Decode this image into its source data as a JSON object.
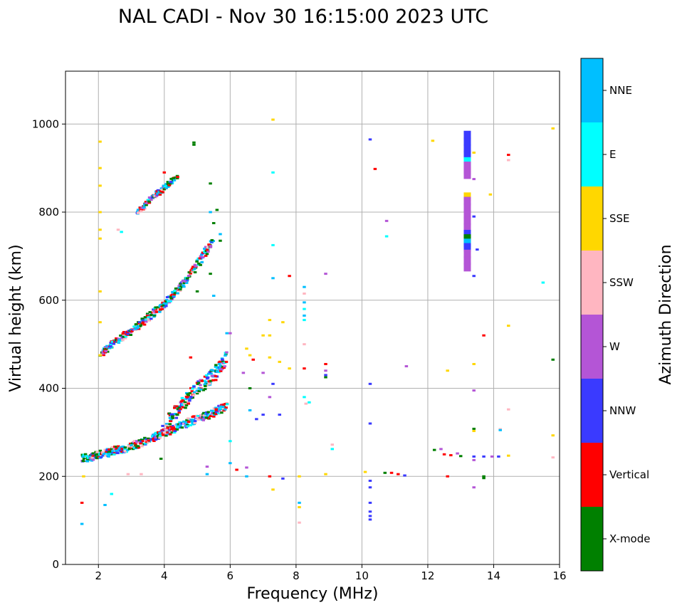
{
  "chart_data": {
    "type": "scatter",
    "title": "NAL CADI - Nov 30 16:15:00 2023 UTC",
    "xlabel": "Frequency (MHz)",
    "ylabel": "Virtual height (km)",
    "xlim": [
      1,
      16
    ],
    "ylim": [
      0,
      1120
    ],
    "xticks": [
      2,
      4,
      6,
      8,
      10,
      12,
      14,
      16
    ],
    "yticks": [
      0,
      200,
      400,
      600,
      800,
      1000
    ],
    "grid": true,
    "colorbar": {
      "label": "Azimuth Direction",
      "categories": [
        {
          "name": "X-mode",
          "color": "#008000"
        },
        {
          "name": "Vertical",
          "color": "#ff0000"
        },
        {
          "name": "NNW",
          "color": "#3a3aff"
        },
        {
          "name": "W",
          "color": "#b455d6"
        },
        {
          "name": "SSW",
          "color": "#ffb6c1"
        },
        {
          "name": "SSE",
          "color": "#ffd700"
        },
        {
          "name": "E",
          "color": "#00ffff"
        },
        {
          "name": "NNE",
          "color": "#00bfff"
        }
      ]
    },
    "echo_traces": [
      {
        "name": "o-trace-1",
        "x": [
          1.5,
          2,
          2.5,
          3,
          3.5,
          4,
          4.5,
          5,
          5.5,
          5.9
        ],
        "y": [
          240,
          248,
          258,
          268,
          282,
          300,
          315,
          330,
          345,
          360
        ],
        "spread": 18
      },
      {
        "name": "o-trace-2",
        "x": [
          4,
          4.5,
          5,
          5.5,
          5.9
        ],
        "y": [
          310,
          360,
          400,
          430,
          470
        ],
        "spread": 30
      },
      {
        "name": "multi-hop-1",
        "x": [
          2.1,
          2.5,
          3,
          3.5,
          4,
          4.5,
          5,
          5.5
        ],
        "y": [
          480,
          505,
          530,
          560,
          590,
          630,
          680,
          740
        ],
        "spread": 14
      },
      {
        "name": "multi-hop-2",
        "x": [
          3.2,
          3.6,
          4,
          4.4
        ],
        "y": [
          800,
          830,
          855,
          880
        ],
        "spread": 10
      }
    ],
    "echo_points": [
      {
        "f": 2.05,
        "h": 960,
        "a": "SSE"
      },
      {
        "f": 2.05,
        "h": 900,
        "a": "SSE"
      },
      {
        "f": 2.05,
        "h": 860,
        "a": "SSE"
      },
      {
        "f": 2.05,
        "h": 800,
        "a": "SSE"
      },
      {
        "f": 2.05,
        "h": 760,
        "a": "SSE"
      },
      {
        "f": 2.05,
        "h": 740,
        "a": "SSE"
      },
      {
        "f": 2.05,
        "h": 620,
        "a": "SSE"
      },
      {
        "f": 2.05,
        "h": 550,
        "a": "SSE"
      },
      {
        "f": 2.05,
        "h": 475,
        "a": "SSE"
      },
      {
        "f": 1.5,
        "h": 92,
        "a": "NNE"
      },
      {
        "f": 1.5,
        "h": 140,
        "a": "Vertical"
      },
      {
        "f": 1.55,
        "h": 200,
        "a": "SSE"
      },
      {
        "f": 2.2,
        "h": 135,
        "a": "NNE"
      },
      {
        "f": 2.4,
        "h": 160,
        "a": "E"
      },
      {
        "f": 2.9,
        "h": 205,
        "a": "SSW"
      },
      {
        "f": 3.3,
        "h": 205,
        "a": "SSW"
      },
      {
        "f": 3.9,
        "h": 240,
        "a": "X-mode"
      },
      {
        "f": 6.0,
        "h": 280,
        "a": "E"
      },
      {
        "f": 6.0,
        "h": 230,
        "a": "NNE"
      },
      {
        "f": 6.2,
        "h": 215,
        "a": "Vertical"
      },
      {
        "f": 6.5,
        "h": 220,
        "a": "W"
      },
      {
        "f": 6.6,
        "h": 400,
        "a": "X-mode"
      },
      {
        "f": 6.6,
        "h": 350,
        "a": "NNE"
      },
      {
        "f": 6.8,
        "h": 330,
        "a": "NNW"
      },
      {
        "f": 7.0,
        "h": 340,
        "a": "NNW"
      },
      {
        "f": 7.2,
        "h": 380,
        "a": "W"
      },
      {
        "f": 7.3,
        "h": 410,
        "a": "NNW"
      },
      {
        "f": 7.5,
        "h": 340,
        "a": "NNW"
      },
      {
        "f": 7.5,
        "h": 460,
        "a": "SSE"
      },
      {
        "f": 7.6,
        "h": 550,
        "a": "SSE"
      },
      {
        "f": 7.8,
        "h": 445,
        "a": "SSE"
      },
      {
        "f": 7.2,
        "h": 200,
        "a": "Vertical"
      },
      {
        "f": 7.3,
        "h": 170,
        "a": "SSE"
      },
      {
        "f": 7.6,
        "h": 195,
        "a": "NNW"
      },
      {
        "f": 7.3,
        "h": 1010,
        "a": "SSE"
      },
      {
        "f": 7.3,
        "h": 890,
        "a": "E"
      },
      {
        "f": 7.3,
        "h": 725,
        "a": "E"
      },
      {
        "f": 7.3,
        "h": 650,
        "a": "NNE"
      },
      {
        "f": 7.8,
        "h": 655,
        "a": "Vertical"
      },
      {
        "f": 8.25,
        "h": 630,
        "a": "NNE"
      },
      {
        "f": 8.25,
        "h": 595,
        "a": "NNE"
      },
      {
        "f": 8.25,
        "h": 580,
        "a": "E"
      },
      {
        "f": 8.25,
        "h": 565,
        "a": "NNE"
      },
      {
        "f": 8.25,
        "h": 555,
        "a": "E"
      },
      {
        "f": 8.25,
        "h": 615,
        "a": "SSW"
      },
      {
        "f": 8.25,
        "h": 500,
        "a": "SSW"
      },
      {
        "f": 8.25,
        "h": 445,
        "a": "Vertical"
      },
      {
        "f": 8.25,
        "h": 380,
        "a": "E"
      },
      {
        "f": 8.3,
        "h": 365,
        "a": "SSW"
      },
      {
        "f": 8.4,
        "h": 368,
        "a": "E"
      },
      {
        "f": 8.1,
        "h": 200,
        "a": "SSE"
      },
      {
        "f": 8.1,
        "h": 140,
        "a": "NNE"
      },
      {
        "f": 8.1,
        "h": 130,
        "a": "SSE"
      },
      {
        "f": 8.1,
        "h": 95,
        "a": "SSW"
      },
      {
        "f": 8.9,
        "h": 660,
        "a": "W"
      },
      {
        "f": 8.9,
        "h": 455,
        "a": "Vertical"
      },
      {
        "f": 8.9,
        "h": 440,
        "a": "W"
      },
      {
        "f": 8.9,
        "h": 430,
        "a": "NNW"
      },
      {
        "f": 8.9,
        "h": 425,
        "a": "X-mode"
      },
      {
        "f": 9.1,
        "h": 272,
        "a": "SSW"
      },
      {
        "f": 9.1,
        "h": 262,
        "a": "E"
      },
      {
        "f": 8.9,
        "h": 205,
        "a": "SSE"
      },
      {
        "f": 10.25,
        "h": 965,
        "a": "NNW"
      },
      {
        "f": 10.4,
        "h": 898,
        "a": "Vertical"
      },
      {
        "f": 10.75,
        "h": 780,
        "a": "W"
      },
      {
        "f": 10.75,
        "h": 745,
        "a": "E"
      },
      {
        "f": 10.25,
        "h": 410,
        "a": "NNW"
      },
      {
        "f": 10.25,
        "h": 320,
        "a": "NNW"
      },
      {
        "f": 10.25,
        "h": 190,
        "a": "NNW"
      },
      {
        "f": 10.25,
        "h": 175,
        "a": "NNW"
      },
      {
        "f": 10.25,
        "h": 140,
        "a": "NNW"
      },
      {
        "f": 10.25,
        "h": 120,
        "a": "NNW"
      },
      {
        "f": 10.25,
        "h": 110,
        "a": "NNW"
      },
      {
        "f": 10.25,
        "h": 102,
        "a": "NNW"
      },
      {
        "f": 10.1,
        "h": 210,
        "a": "SSE"
      },
      {
        "f": 10.7,
        "h": 208,
        "a": "X-mode"
      },
      {
        "f": 10.9,
        "h": 208,
        "a": "Vertical"
      },
      {
        "f": 11.1,
        "h": 205,
        "a": "Vertical"
      },
      {
        "f": 11.3,
        "h": 202,
        "a": "NNW"
      },
      {
        "f": 11.35,
        "h": 450,
        "a": "W"
      },
      {
        "f": 12.15,
        "h": 962,
        "a": "SSE"
      },
      {
        "f": 12.6,
        "h": 440,
        "a": "SSE"
      },
      {
        "f": 12.2,
        "h": 260,
        "a": "X-mode"
      },
      {
        "f": 12.4,
        "h": 262,
        "a": "W"
      },
      {
        "f": 12.5,
        "h": 250,
        "a": "Vertical"
      },
      {
        "f": 12.7,
        "h": 248,
        "a": "Vertical"
      },
      {
        "f": 12.9,
        "h": 252,
        "a": "W"
      },
      {
        "f": 13.0,
        "h": 246,
        "a": "X-mode"
      },
      {
        "f": 12.6,
        "h": 200,
        "a": "Vertical"
      },
      {
        "f": 13.4,
        "h": 935,
        "a": "SSE"
      },
      {
        "f": 13.4,
        "h": 875,
        "a": "W"
      },
      {
        "f": 13.4,
        "h": 790,
        "a": "NNW"
      },
      {
        "f": 13.5,
        "h": 715,
        "a": "NNW"
      },
      {
        "f": 13.4,
        "h": 655,
        "a": "NNW"
      },
      {
        "f": 13.4,
        "h": 455,
        "a": "SSE"
      },
      {
        "f": 13.4,
        "h": 395,
        "a": "W"
      },
      {
        "f": 13.4,
        "h": 308,
        "a": "X-mode"
      },
      {
        "f": 13.4,
        "h": 303,
        "a": "SSE"
      },
      {
        "f": 13.4,
        "h": 245,
        "a": "NNW"
      },
      {
        "f": 13.4,
        "h": 237,
        "a": "W"
      },
      {
        "f": 13.4,
        "h": 175,
        "a": "W"
      },
      {
        "f": 13.7,
        "h": 520,
        "a": "Vertical"
      },
      {
        "f": 13.7,
        "h": 245,
        "a": "NNW"
      },
      {
        "f": 13.7,
        "h": 200,
        "a": "X-mode"
      },
      {
        "f": 13.7,
        "h": 196,
        "a": "X-mode"
      },
      {
        "f": 13.9,
        "h": 840,
        "a": "SSE"
      },
      {
        "f": 13.95,
        "h": 245,
        "a": "W"
      },
      {
        "f": 14.15,
        "h": 245,
        "a": "NNW"
      },
      {
        "f": 14.2,
        "h": 307,
        "a": "SSW"
      },
      {
        "f": 14.2,
        "h": 305,
        "a": "NNE"
      },
      {
        "f": 14.45,
        "h": 930,
        "a": "Vertical"
      },
      {
        "f": 14.45,
        "h": 918,
        "a": "SSW"
      },
      {
        "f": 14.45,
        "h": 542,
        "a": "SSE"
      },
      {
        "f": 14.45,
        "h": 352,
        "a": "SSW"
      },
      {
        "f": 14.45,
        "h": 247,
        "a": "SSE"
      },
      {
        "f": 15.5,
        "h": 640,
        "a": "E"
      },
      {
        "f": 15.8,
        "h": 990,
        "a": "SSE"
      },
      {
        "f": 15.8,
        "h": 465,
        "a": "X-mode"
      },
      {
        "f": 15.8,
        "h": 293,
        "a": "SSE"
      },
      {
        "f": 15.8,
        "h": 243,
        "a": "SSW"
      },
      {
        "f": 4.9,
        "h": 958,
        "a": "X-mode"
      },
      {
        "f": 4.9,
        "h": 953,
        "a": "X-mode"
      },
      {
        "f": 5.4,
        "h": 865,
        "a": "X-mode"
      },
      {
        "f": 5.6,
        "h": 805,
        "a": "X-mode"
      },
      {
        "f": 5.4,
        "h": 800,
        "a": "NNE"
      },
      {
        "f": 5.5,
        "h": 775,
        "a": "X-mode"
      },
      {
        "f": 5.7,
        "h": 750,
        "a": "NNE"
      },
      {
        "f": 5.7,
        "h": 735,
        "a": "X-mode"
      },
      {
        "f": 5.3,
        "h": 705,
        "a": "X-mode"
      },
      {
        "f": 5.1,
        "h": 680,
        "a": "X-mode"
      },
      {
        "f": 5.4,
        "h": 660,
        "a": "X-mode"
      },
      {
        "f": 5.0,
        "h": 620,
        "a": "X-mode"
      },
      {
        "f": 5.5,
        "h": 610,
        "a": "NNE"
      },
      {
        "f": 5.9,
        "h": 525,
        "a": "NNE"
      },
      {
        "f": 6.0,
        "h": 525,
        "a": "W"
      },
      {
        "f": 6.5,
        "h": 490,
        "a": "SSE"
      },
      {
        "f": 6.6,
        "h": 475,
        "a": "SSE"
      },
      {
        "f": 6.7,
        "h": 465,
        "a": "Vertical"
      },
      {
        "f": 6.4,
        "h": 435,
        "a": "W"
      },
      {
        "f": 7.0,
        "h": 435,
        "a": "W"
      },
      {
        "f": 7.2,
        "h": 470,
        "a": "SSE"
      },
      {
        "f": 7.2,
        "h": 520,
        "a": "SSE"
      },
      {
        "f": 7.2,
        "h": 555,
        "a": "SSE"
      },
      {
        "f": 7.0,
        "h": 520,
        "a": "SSE"
      },
      {
        "f": 2.6,
        "h": 760,
        "a": "SSW"
      },
      {
        "f": 2.7,
        "h": 755,
        "a": "E"
      },
      {
        "f": 4.0,
        "h": 890,
        "a": "Vertical"
      },
      {
        "f": 4.8,
        "h": 470,
        "a": "Vertical"
      },
      {
        "f": 4.7,
        "h": 380,
        "a": "Vertical"
      },
      {
        "f": 4.4,
        "h": 340,
        "a": "X-mode"
      },
      {
        "f": 5.3,
        "h": 205,
        "a": "NNE"
      },
      {
        "f": 5.3,
        "h": 222,
        "a": "W"
      },
      {
        "f": 6.5,
        "h": 200,
        "a": "NNE"
      }
    ]
  }
}
